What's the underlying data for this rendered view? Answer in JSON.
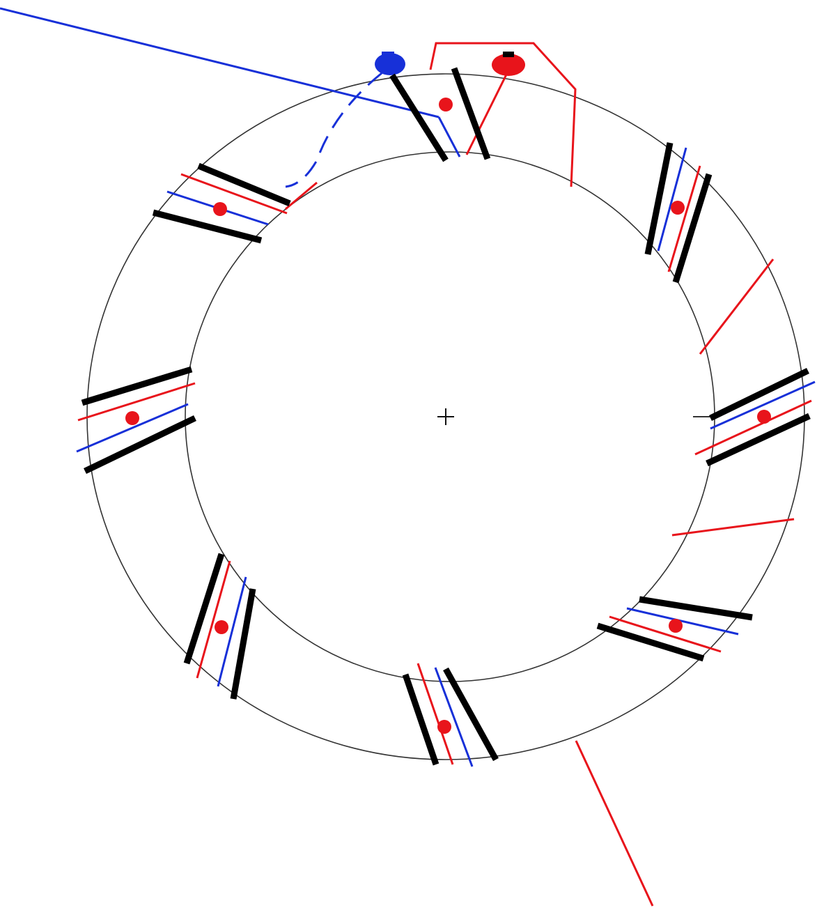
{
  "diagram": {
    "kind": "ring-geometry-schematic",
    "colors": {
      "background": "#ffffff",
      "ring_outline": "#333333",
      "module": "#000000",
      "red": "#e8141b",
      "blue": "#1730d8",
      "center_mark": "#111111"
    },
    "modules_count": 8,
    "center_marker": "plus"
  }
}
